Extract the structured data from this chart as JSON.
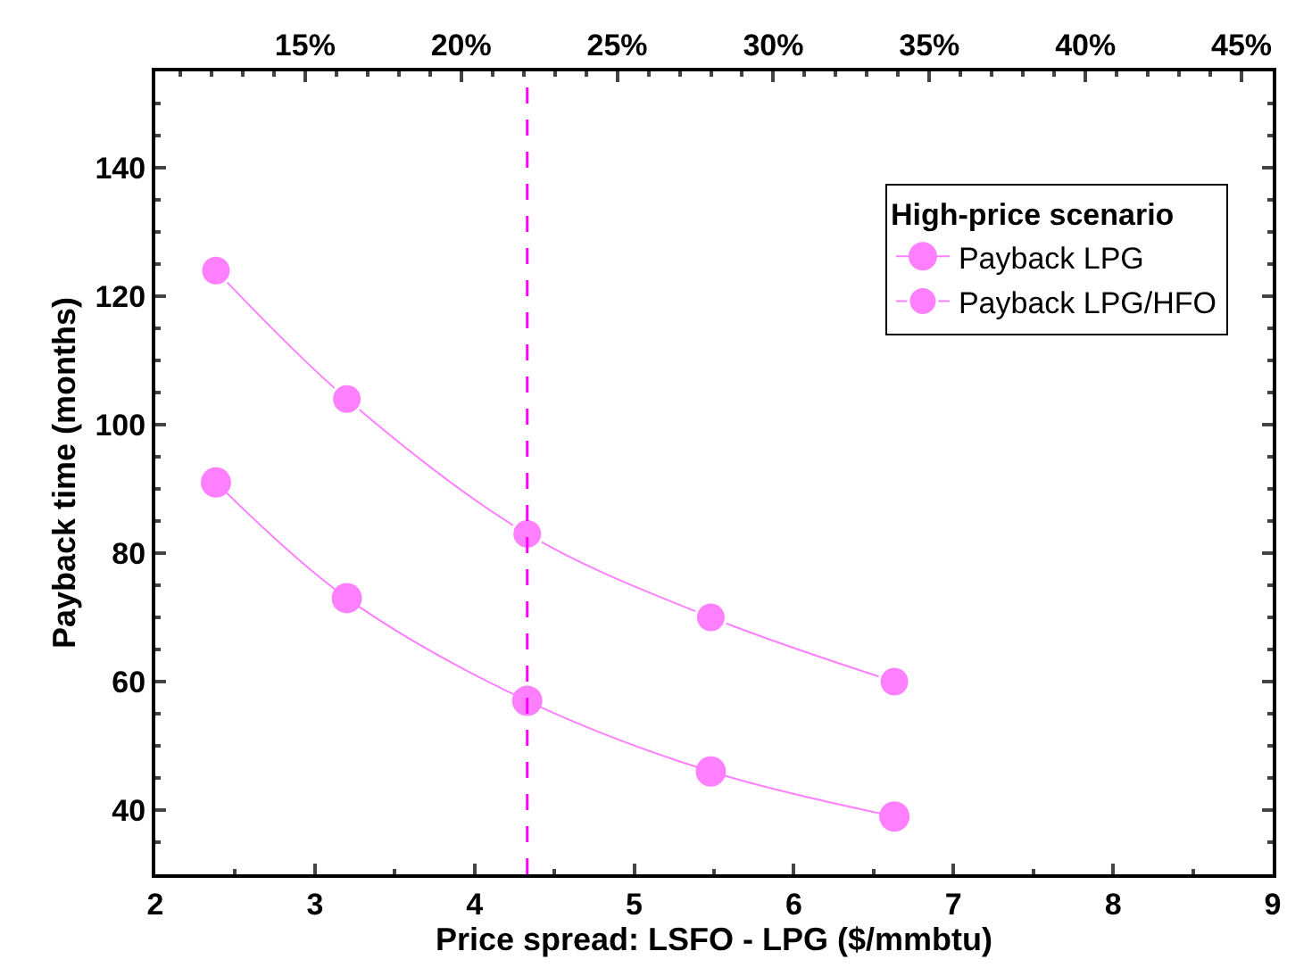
{
  "chart_data": {
    "type": "line",
    "xlabel": "Price spread: LSFO - LPG ($/mmbtu)",
    "ylabel": "Payback time (months)",
    "legend_title": "High-price scenario",
    "x": [
      2.38,
      3.2,
      4.33,
      5.48,
      6.63
    ],
    "series": [
      {
        "name": "Payback LPG",
        "color": "#ff80ff",
        "values": [
          91,
          73,
          57,
          46,
          39
        ]
      },
      {
        "name": "Payback LPG/HFO",
        "color": "#ff80ff",
        "values": [
          124,
          104,
          83,
          70,
          60
        ]
      }
    ],
    "xlim": [
      2,
      9
    ],
    "xticks": [
      2,
      3,
      4,
      5,
      6,
      7,
      8,
      9
    ],
    "ylim": [
      30,
      155
    ],
    "yticks": [
      40,
      60,
      80,
      100,
      120,
      140
    ],
    "x2lim": [
      10.2,
      46
    ],
    "x2ticks": [
      {
        "value": 15,
        "label": "15%"
      },
      {
        "value": 20,
        "label": "20%"
      },
      {
        "value": 25,
        "label": "25%"
      },
      {
        "value": 30,
        "label": "30%"
      },
      {
        "value": 35,
        "label": "35%"
      },
      {
        "value": 40,
        "label": "40%"
      },
      {
        "value": 45,
        "label": "45%"
      }
    ],
    "ref_lines": [
      {
        "axis": "x",
        "value": 4.33,
        "color": "#ff00ff",
        "line_style": "dashed"
      }
    ],
    "marker": "circle",
    "line_style": "solid",
    "legend": "top right"
  }
}
